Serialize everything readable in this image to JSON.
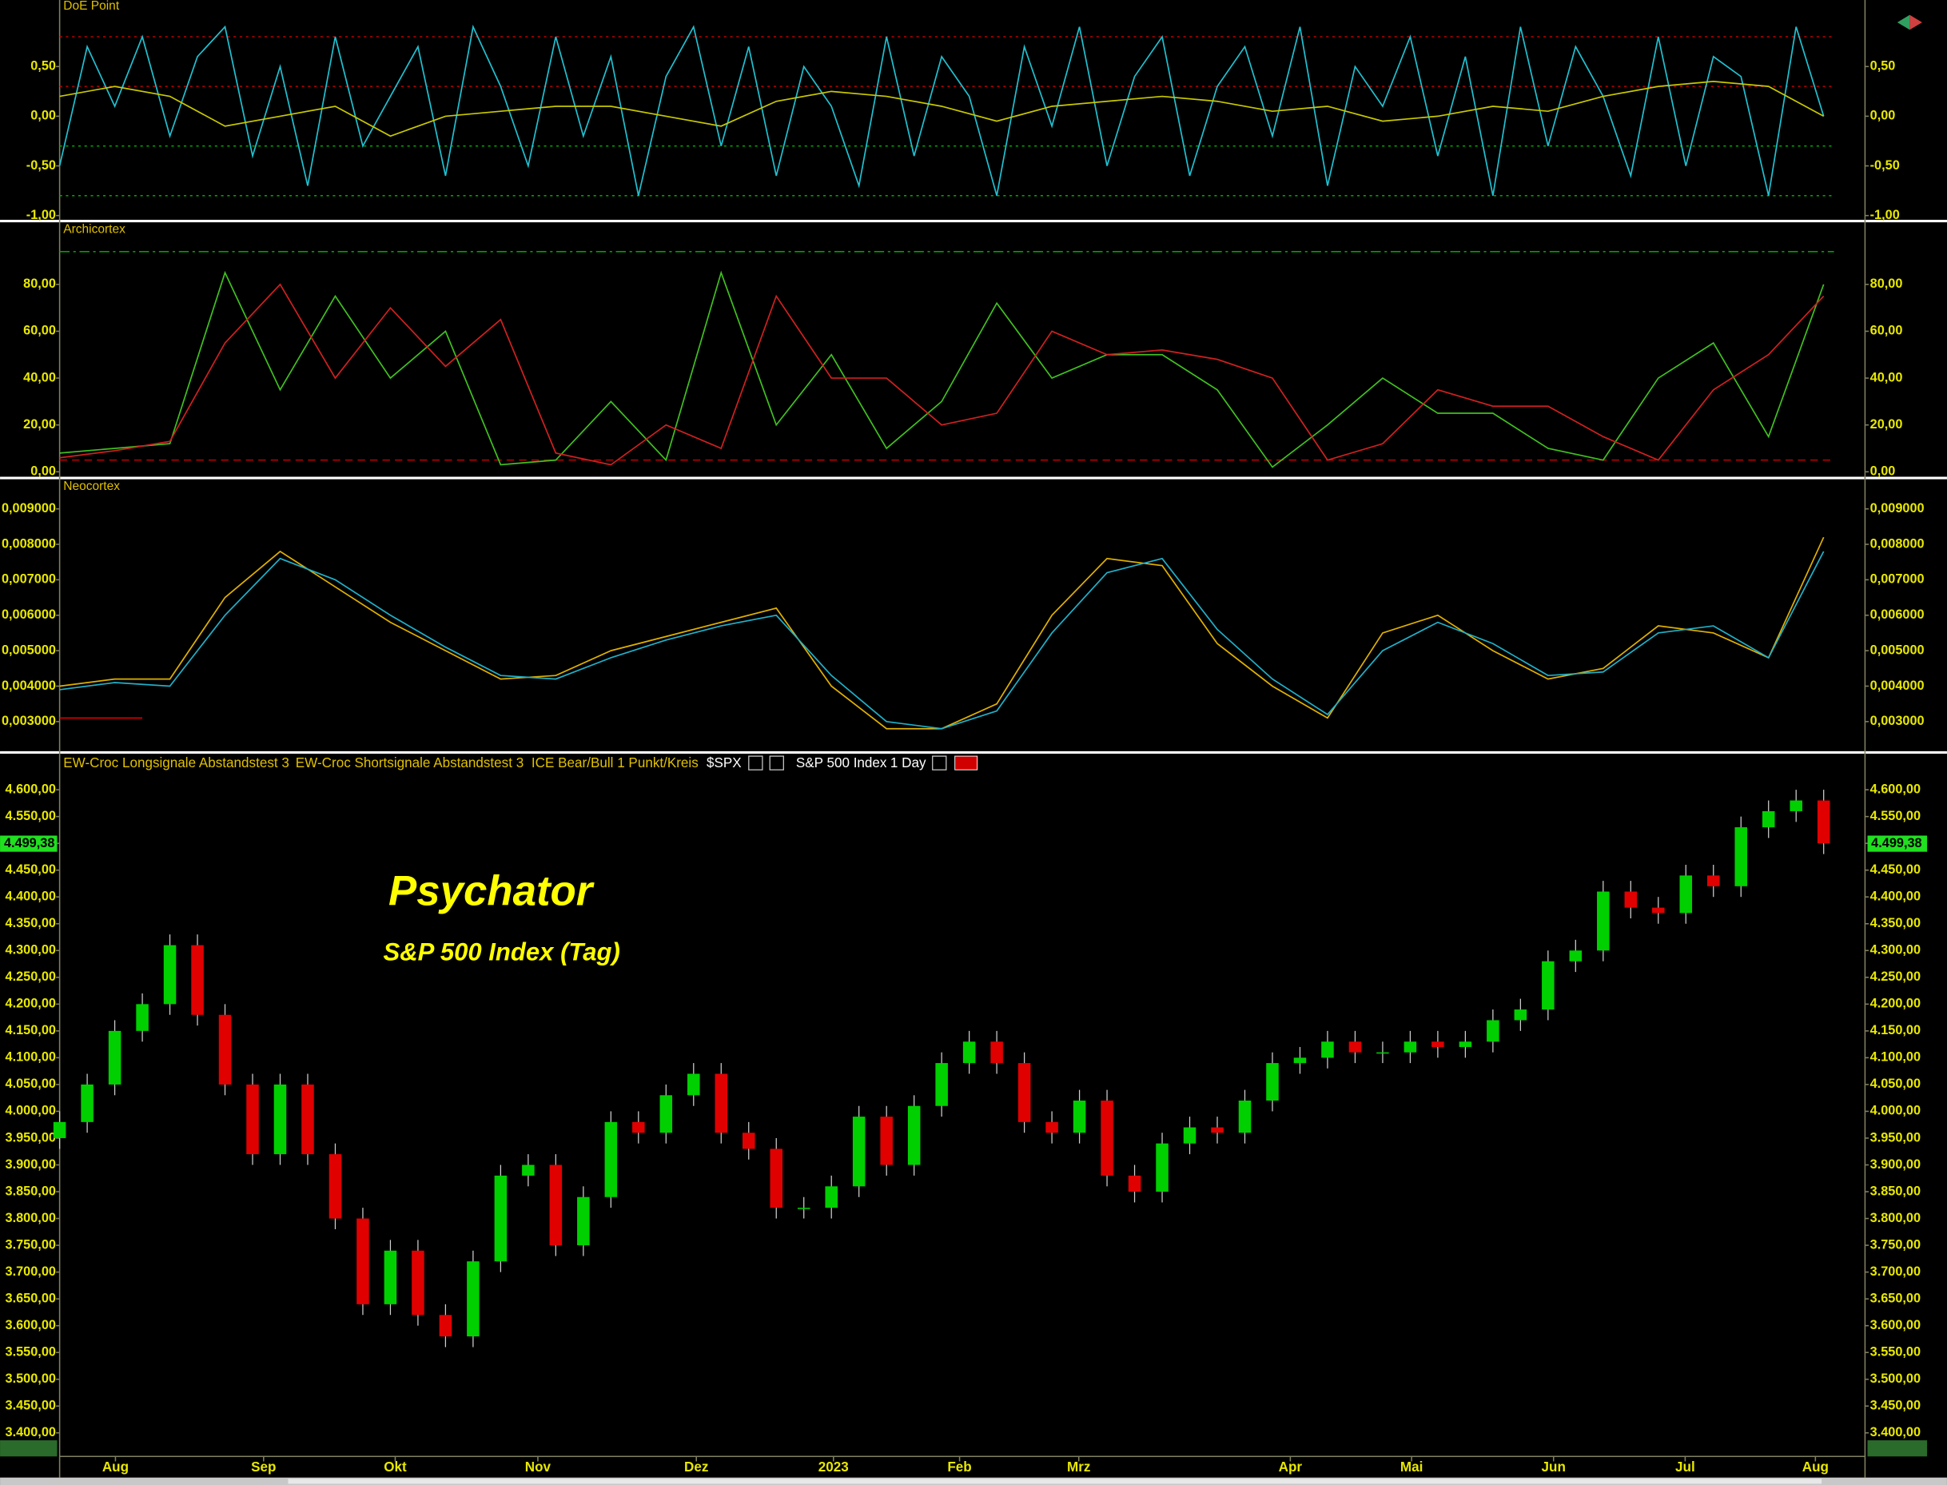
{
  "chart_data": [
    {
      "type": "line",
      "title": "DoE Point",
      "xlim": [
        0,
        262
      ],
      "ylim": [
        -1.03,
        1.17
      ],
      "yticks": [
        {
          "value": 0.5,
          "label": "0,50"
        },
        {
          "value": 0,
          "label": "0,00"
        },
        {
          "value": -0.5,
          "label": "-0,50"
        },
        {
          "value": -1,
          "label": "-1,00"
        }
      ],
      "levels": [
        {
          "value": 0.8,
          "color": "#c00000",
          "dash": "dotted"
        },
        {
          "value": 0.3,
          "color": "#c00000",
          "dash": "dotted"
        },
        {
          "value": -0.3,
          "color": "#00a000",
          "dash": "dotted"
        },
        {
          "value": -0.8,
          "color": "#00a000",
          "dash": "dotted"
        }
      ],
      "series": [
        {
          "color": "#20c0d0",
          "x": [
            0,
            4,
            8,
            12,
            16,
            20,
            24,
            28,
            32,
            36,
            40,
            44,
            48,
            52,
            56,
            60,
            64,
            68,
            72,
            76,
            80,
            84,
            88,
            92,
            96,
            100,
            104,
            108,
            112,
            116,
            120,
            124,
            128,
            132,
            136,
            140,
            144,
            148,
            152,
            156,
            160,
            164,
            168,
            172,
            176,
            180,
            184,
            188,
            192,
            196,
            200,
            204,
            208,
            212,
            216,
            220,
            224,
            228,
            232,
            236,
            240,
            244,
            248,
            252,
            256
          ],
          "values": [
            -0.5,
            0.7,
            0.1,
            0.8,
            -0.2,
            0.6,
            0.9,
            -0.4,
            0.5,
            -0.7,
            0.8,
            -0.3,
            0.2,
            0.7,
            -0.6,
            0.9,
            0.3,
            -0.5,
            0.8,
            -0.2,
            0.6,
            -0.8,
            0.4,
            0.9,
            -0.3,
            0.7,
            -0.6,
            0.5,
            0.1,
            -0.7,
            0.8,
            -0.4,
            0.6,
            0.2,
            -0.8,
            0.7,
            -0.1,
            0.9,
            -0.5,
            0.4,
            0.8,
            -0.6,
            0.3,
            0.7,
            -0.2,
            0.9,
            -0.7,
            0.5,
            0.1,
            0.8,
            -0.4,
            0.6,
            -0.8,
            0.9,
            -0.3,
            0.7,
            0.2,
            -0.6,
            0.8,
            -0.5,
            0.6,
            0.4,
            -0.8,
            0.9,
            0.0
          ]
        },
        {
          "color": "#c8c800",
          "x": [
            0,
            8,
            16,
            24,
            32,
            40,
            48,
            56,
            64,
            72,
            80,
            88,
            96,
            104,
            112,
            120,
            128,
            136,
            144,
            152,
            160,
            168,
            176,
            184,
            192,
            200,
            208,
            216,
            224,
            232,
            240,
            248,
            256
          ],
          "values": [
            0.2,
            0.3,
            0.2,
            -0.1,
            0.0,
            0.1,
            -0.2,
            0.0,
            0.05,
            0.1,
            0.1,
            0.0,
            -0.1,
            0.15,
            0.25,
            0.2,
            0.1,
            -0.05,
            0.1,
            0.15,
            0.2,
            0.15,
            0.05,
            0.1,
            -0.05,
            0.0,
            0.1,
            0.05,
            0.2,
            0.3,
            0.35,
            0.3,
            0.0
          ]
        }
      ]
    },
    {
      "type": "line",
      "title": "Archicortex",
      "xlim": [
        0,
        262
      ],
      "ylim": [
        -1.6,
        106
      ],
      "yticks": [
        {
          "value": 0,
          "label": "0,00"
        },
        {
          "value": 20,
          "label": "20,00"
        },
        {
          "value": 40,
          "label": "40,00"
        },
        {
          "value": 60,
          "label": "60,00"
        },
        {
          "value": 80,
          "label": "80,00"
        }
      ],
      "levels": [
        {
          "value": 94,
          "color": "#00a000",
          "dash": "dash-dot"
        },
        {
          "value": 5,
          "color": "#c00000",
          "dash": "dashed"
        }
      ],
      "series": [
        {
          "color": "#40c020",
          "x": [
            0,
            8,
            16,
            24,
            32,
            40,
            48,
            56,
            64,
            72,
            80,
            88,
            96,
            104,
            112,
            120,
            128,
            136,
            144,
            152,
            160,
            168,
            176,
            184,
            192,
            200,
            208,
            216,
            224,
            232,
            240,
            248,
            256
          ],
          "values": [
            8,
            10,
            12,
            85,
            35,
            75,
            40,
            60,
            3,
            5,
            30,
            5,
            85,
            20,
            50,
            10,
            30,
            72,
            40,
            50,
            50,
            35,
            2,
            20,
            40,
            25,
            25,
            10,
            5,
            40,
            55,
            15,
            80
          ]
        },
        {
          "color": "#d02020",
          "x": [
            0,
            8,
            16,
            24,
            32,
            40,
            48,
            56,
            64,
            72,
            80,
            88,
            96,
            104,
            112,
            120,
            128,
            136,
            144,
            152,
            160,
            168,
            176,
            184,
            192,
            200,
            208,
            216,
            224,
            232,
            240,
            248,
            256
          ],
          "values": [
            6,
            9,
            13,
            55,
            80,
            40,
            70,
            45,
            65,
            8,
            3,
            20,
            10,
            75,
            40,
            40,
            20,
            25,
            60,
            50,
            52,
            48,
            40,
            5,
            12,
            35,
            28,
            28,
            15,
            5,
            35,
            50,
            75
          ]
        }
      ]
    },
    {
      "type": "line",
      "title": "Neocortex",
      "xlim": [
        0,
        262
      ],
      "ylim": [
        0.0022,
        0.0098
      ],
      "yticks": [
        {
          "value": 0.003,
          "label": "0,003000"
        },
        {
          "value": 0.004,
          "label": "0,004000"
        },
        {
          "value": 0.005,
          "label": "0,005000"
        },
        {
          "value": 0.006,
          "label": "0,006000"
        },
        {
          "value": 0.007,
          "label": "0,007000"
        },
        {
          "value": 0.008,
          "label": "0,008000"
        },
        {
          "value": 0.009,
          "label": "0,009000"
        }
      ],
      "levels": [],
      "series": [
        {
          "color": "#e0b000",
          "x": [
            0,
            8,
            16,
            24,
            32,
            40,
            48,
            56,
            64,
            72,
            80,
            88,
            96,
            104,
            112,
            120,
            128,
            136,
            144,
            152,
            160,
            168,
            176,
            184,
            192,
            200,
            208,
            216,
            224,
            232,
            240,
            248,
            256
          ],
          "values": [
            0.004,
            0.0042,
            0.0042,
            0.0065,
            0.0078,
            0.0068,
            0.0058,
            0.005,
            0.0042,
            0.0043,
            0.005,
            0.0054,
            0.0058,
            0.0062,
            0.004,
            0.0028,
            0.0028,
            0.0035,
            0.006,
            0.0076,
            0.0074,
            0.0052,
            0.004,
            0.0031,
            0.0055,
            0.006,
            0.005,
            0.0042,
            0.0045,
            0.0057,
            0.0055,
            0.0048,
            0.0082
          ]
        },
        {
          "color": "#20b0c8",
          "x": [
            0,
            8,
            16,
            24,
            32,
            40,
            48,
            56,
            64,
            72,
            80,
            88,
            96,
            104,
            112,
            120,
            128,
            136,
            144,
            152,
            160,
            168,
            176,
            184,
            192,
            200,
            208,
            216,
            224,
            232,
            240,
            248,
            256
          ],
          "values": [
            0.0039,
            0.0041,
            0.004,
            0.006,
            0.0076,
            0.007,
            0.006,
            0.0051,
            0.0043,
            0.0042,
            0.0048,
            0.0053,
            0.0057,
            0.006,
            0.0043,
            0.003,
            0.0028,
            0.0033,
            0.0055,
            0.0072,
            0.0076,
            0.0056,
            0.0042,
            0.0032,
            0.005,
            0.0058,
            0.0052,
            0.0043,
            0.0044,
            0.0055,
            0.0057,
            0.0048,
            0.0078
          ]
        },
        {
          "color": "#d00000",
          "x": [
            0,
            12
          ],
          "values": [
            0.0031,
            0.0031
          ]
        }
      ]
    },
    {
      "type": "candlestick",
      "xlim": [
        0,
        262
      ],
      "ylim": [
        3356,
        4665
      ],
      "legend": [
        "EW-Croc Longsignale Abstandstest 3",
        "EW-Croc Shortsignale Abstandstest 3",
        "ICE Bear/Bull 1 Punkt/Kreis",
        "$SPX",
        "S&P 500 Index",
        "1 Day"
      ],
      "annotations": [
        "Psychator",
        "S&P 500 Index (Tag)"
      ],
      "last_price": {
        "value": 4499.38,
        "label": "4.499,38"
      },
      "up_color": "#00d000",
      "down_color": "#e00000",
      "yticks": [
        {
          "value": 3400,
          "label": "3.400,00"
        },
        {
          "value": 3450,
          "label": "3.450,00"
        },
        {
          "value": 3500,
          "label": "3.500,00"
        },
        {
          "value": 3550,
          "label": "3.550,00"
        },
        {
          "value": 3600,
          "label": "3.600,00"
        },
        {
          "value": 3650,
          "label": "3.650,00"
        },
        {
          "value": 3700,
          "label": "3.700,00"
        },
        {
          "value": 3750,
          "label": "3.750,00"
        },
        {
          "value": 3800,
          "label": "3.800,00"
        },
        {
          "value": 3850,
          "label": "3.850,00"
        },
        {
          "value": 3900,
          "label": "3.900,00"
        },
        {
          "value": 3950,
          "label": "3.950,00"
        },
        {
          "value": 4000,
          "label": "4.000,00"
        },
        {
          "value": 4050,
          "label": "4.050,00"
        },
        {
          "value": 4100,
          "label": "4.100,00"
        },
        {
          "value": 4150,
          "label": "4.150,00"
        },
        {
          "value": 4200,
          "label": "4.200,00"
        },
        {
          "value": 4250,
          "label": "4.250,00"
        },
        {
          "value": 4300,
          "label": "4.300,00"
        },
        {
          "value": 4350,
          "label": "4.350,00"
        },
        {
          "value": 4400,
          "label": "4.400,00"
        },
        {
          "value": 4450,
          "label": "4.450,00"
        },
        {
          "value": 4500,
          "label": "4.500,00"
        },
        {
          "value": 4550,
          "label": "4.550,00"
        },
        {
          "value": 4600,
          "label": "4.600,00"
        }
      ],
      "xticks": [
        {
          "value": 8.1,
          "label": "Aug"
        },
        {
          "value": 29.6,
          "label": "Sep"
        },
        {
          "value": 48.7,
          "label": "Okt"
        },
        {
          "value": 69.4,
          "label": "Nov"
        },
        {
          "value": 92.4,
          "label": "Dez"
        },
        {
          "value": 112.3,
          "label": "2023"
        },
        {
          "value": 130.6,
          "label": "Feb"
        },
        {
          "value": 147.9,
          "label": "Mrz"
        },
        {
          "value": 178.6,
          "label": "Apr"
        },
        {
          "value": 196.2,
          "label": "Mai"
        },
        {
          "value": 216.8,
          "label": "Jun"
        },
        {
          "value": 235.9,
          "label": "Jul"
        },
        {
          "value": 254.8,
          "label": "Aug"
        }
      ],
      "x": [
        0,
        4,
        8,
        12,
        16,
        20,
        24,
        28,
        32,
        36,
        40,
        44,
        48,
        52,
        56,
        60,
        64,
        68,
        72,
        76,
        80,
        84,
        88,
        92,
        96,
        100,
        104,
        108,
        112,
        116,
        120,
        124,
        128,
        132,
        136,
        140,
        144,
        148,
        152,
        156,
        160,
        164,
        168,
        172,
        176,
        180,
        184,
        188,
        192,
        196,
        200,
        204,
        208,
        212,
        216,
        220,
        224,
        228,
        232,
        236,
        240,
        244,
        248,
        252,
        256
      ],
      "open": [
        3950,
        3980,
        4050,
        4150,
        4200,
        4310,
        4180,
        4050,
        3920,
        4050,
        3920,
        3800,
        3640,
        3740,
        3620,
        3580,
        3720,
        3880,
        3900,
        3750,
        3840,
        3980,
        3960,
        4030,
        4070,
        3960,
        3930,
        3820,
        3820,
        3860,
        3990,
        3900,
        4010,
        4090,
        4130,
        4090,
        3980,
        3960,
        4020,
        3880,
        3850,
        3940,
        3970,
        3960,
        4020,
        4090,
        4100,
        4130,
        4110,
        4110,
        4130,
        4120,
        4130,
        4170,
        4190,
        4280,
        4300,
        4410,
        4380,
        4370,
        4440,
        4420,
        4530,
        4560,
        4580
      ],
      "high": [
        4000,
        4070,
        4170,
        4220,
        4330,
        4330,
        4200,
        4070,
        4070,
        4070,
        3940,
        3820,
        3760,
        3760,
        3640,
        3740,
        3900,
        3920,
        3920,
        3860,
        4000,
        4000,
        4050,
        4090,
        4090,
        3980,
        3950,
        3840,
        3880,
        4010,
        4010,
        4030,
        4110,
        4150,
        4150,
        4110,
        4000,
        4040,
        4040,
        3900,
        3960,
        3990,
        3990,
        4040,
        4110,
        4120,
        4150,
        4150,
        4130,
        4150,
        4150,
        4150,
        4190,
        4210,
        4300,
        4320,
        4430,
        4430,
        4400,
        4460,
        4460,
        4550,
        4580,
        4600,
        4600
      ],
      "low": [
        3930,
        3960,
        4030,
        4130,
        4180,
        4160,
        4030,
        3900,
        3900,
        3900,
        3780,
        3620,
        3620,
        3600,
        3560,
        3560,
        3700,
        3860,
        3730,
        3730,
        3820,
        3940,
        3940,
        4010,
        3940,
        3910,
        3800,
        3800,
        3800,
        3840,
        3880,
        3880,
        3990,
        4070,
        4070,
        3960,
        3940,
        3940,
        3860,
        3830,
        3830,
        3920,
        3940,
        3940,
        4000,
        4070,
        4080,
        4090,
        4090,
        4090,
        4100,
        4100,
        4110,
        4150,
        4170,
        4260,
        4280,
        4360,
        4350,
        4350,
        4400,
        4400,
        4510,
        4540,
        4480
      ],
      "close": [
        3980,
        4050,
        4150,
        4200,
        4310,
        4180,
        4050,
        3920,
        4050,
        3920,
        3800,
        3640,
        3740,
        3620,
        3580,
        3720,
        3880,
        3900,
        3750,
        3840,
        3980,
        3960,
        4030,
        4070,
        3960,
        3930,
        3820,
        3820,
        3860,
        3990,
        3900,
        4010,
        4090,
        4130,
        4090,
        3980,
        3960,
        4020,
        3880,
        3850,
        3940,
        3970,
        3960,
        4020,
        4090,
        4100,
        4130,
        4110,
        4110,
        4130,
        4120,
        4130,
        4170,
        4190,
        4280,
        4300,
        4410,
        4380,
        4370,
        4440,
        4420,
        4530,
        4560,
        4580,
        4500
      ]
    }
  ]
}
